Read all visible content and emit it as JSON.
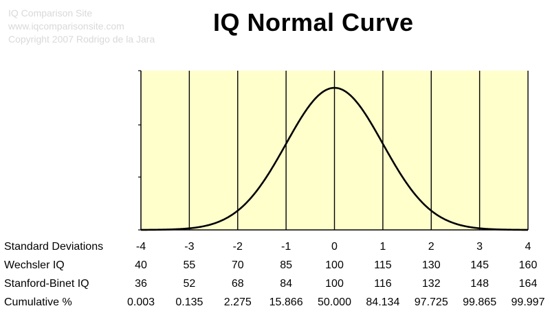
{
  "watermark": {
    "line1": "IQ Comparison Site",
    "line2": "www.iqcomparisonsite.com",
    "line3": "Copyright 2007 Rodrigo de la Jara"
  },
  "chart_data": {
    "type": "line",
    "title": "IQ Normal Curve",
    "x_axis": {
      "label": "Standard Deviations",
      "ticks": [
        "-4",
        "-3",
        "-2",
        "-1",
        "0",
        "1",
        "2",
        "3",
        "4"
      ],
      "range": [
        -4,
        4
      ]
    },
    "curve": "standard normal density",
    "grid_lines_at_sd": [
      -4,
      -3,
      -2,
      -1,
      0,
      1,
      2,
      3,
      4
    ],
    "table": {
      "rows": [
        {
          "label": "Standard Deviations",
          "values": [
            "-4",
            "-3",
            "-2",
            "-1",
            "0",
            "1",
            "2",
            "3",
            "4"
          ]
        },
        {
          "label": "Wechsler IQ",
          "values": [
            "40",
            "55",
            "70",
            "85",
            "100",
            "115",
            "130",
            "145",
            "160"
          ]
        },
        {
          "label": "Stanford-Binet IQ",
          "values": [
            "36",
            "52",
            "68",
            "84",
            "100",
            "116",
            "132",
            "148",
            "164"
          ]
        },
        {
          "label": "Cumulative %",
          "values": [
            "0.003",
            "0.135",
            "2.275",
            "15.866",
            "50.000",
            "84.134",
            "97.725",
            "99.865",
            "99.997"
          ]
        }
      ]
    },
    "colors": {
      "plot_background": "#ffffcc",
      "curve": "#000000",
      "grid": "#000000"
    }
  }
}
